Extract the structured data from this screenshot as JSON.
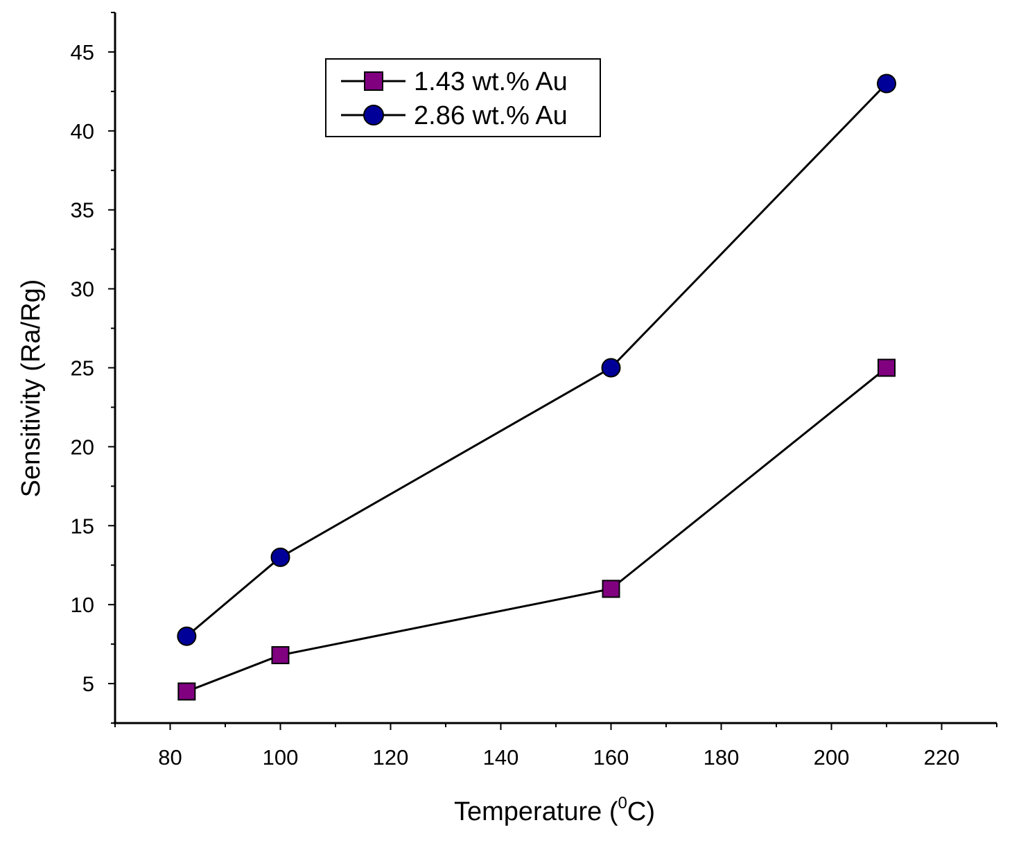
{
  "chart_data": {
    "type": "line",
    "title": "",
    "xlabel": "Temperature (",
    "xlabel_superscript": "0",
    "xlabel_suffix": "C)",
    "ylabel": "Sensitivity (Ra/Rg)",
    "xlim": [
      70,
      230
    ],
    "ylim": [
      2.5,
      47.5
    ],
    "x_ticks": [
      80,
      100,
      120,
      140,
      160,
      180,
      200,
      220
    ],
    "x_tick_labels": [
      "80",
      "100",
      "120",
      "140",
      "160",
      "180",
      "200",
      "220"
    ],
    "y_ticks": [
      5,
      10,
      15,
      20,
      25,
      30,
      35,
      40,
      45
    ],
    "y_tick_labels": [
      "5",
      "10",
      "15",
      "20",
      "25",
      "30",
      "35",
      "40",
      "45"
    ],
    "grid": false,
    "legend_position": "top-center",
    "series": [
      {
        "name": "1.43 wt.% Au",
        "marker": "square",
        "color": "#800080",
        "x": [
          83,
          100,
          160,
          210
        ],
        "y": [
          4.5,
          6.8,
          11,
          25
        ]
      },
      {
        "name": "2.86 wt.% Au",
        "marker": "circle",
        "color": "#000099",
        "x": [
          83,
          100,
          160,
          210
        ],
        "y": [
          8,
          13,
          25,
          43
        ]
      }
    ]
  }
}
